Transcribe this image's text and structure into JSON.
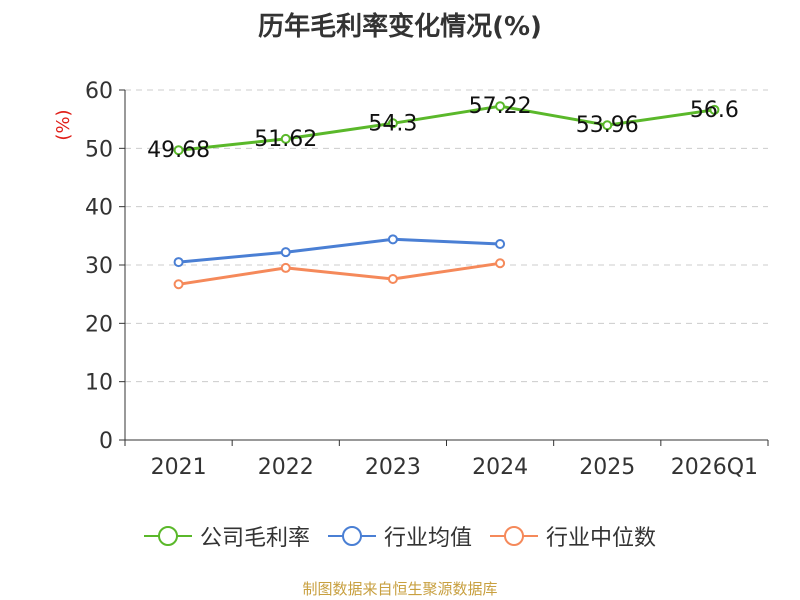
{
  "title": "历年毛利率变化情况(%)",
  "source": "制图数据来自恒生聚源数据库",
  "chart_data": {
    "type": "line",
    "categories": [
      "2021",
      "2022",
      "2023",
      "2024",
      "2025",
      "2026Q1"
    ],
    "ylabel": "(%)",
    "ylim": [
      0,
      60
    ],
    "yticks": [
      0,
      10,
      20,
      30,
      40,
      50,
      60
    ],
    "grid": true,
    "legend_position": "bottom",
    "series": [
      {
        "name": "公司毛利率",
        "color": "#5ab82a",
        "show_labels": true,
        "values": [
          49.68,
          51.62,
          54.3,
          57.22,
          53.96,
          56.6
        ]
      },
      {
        "name": "行业均值",
        "color": "#4a7fd4",
        "show_labels": false,
        "values": [
          30.5,
          32.2,
          34.4,
          33.6,
          null,
          null
        ]
      },
      {
        "name": "行业中位数",
        "color": "#f5895a",
        "show_labels": false,
        "values": [
          26.7,
          29.5,
          27.6,
          30.3,
          null,
          null
        ]
      }
    ]
  },
  "colors": {
    "ylabel": "#e0201a",
    "axis": "#333333",
    "grid": "#cccccc"
  }
}
